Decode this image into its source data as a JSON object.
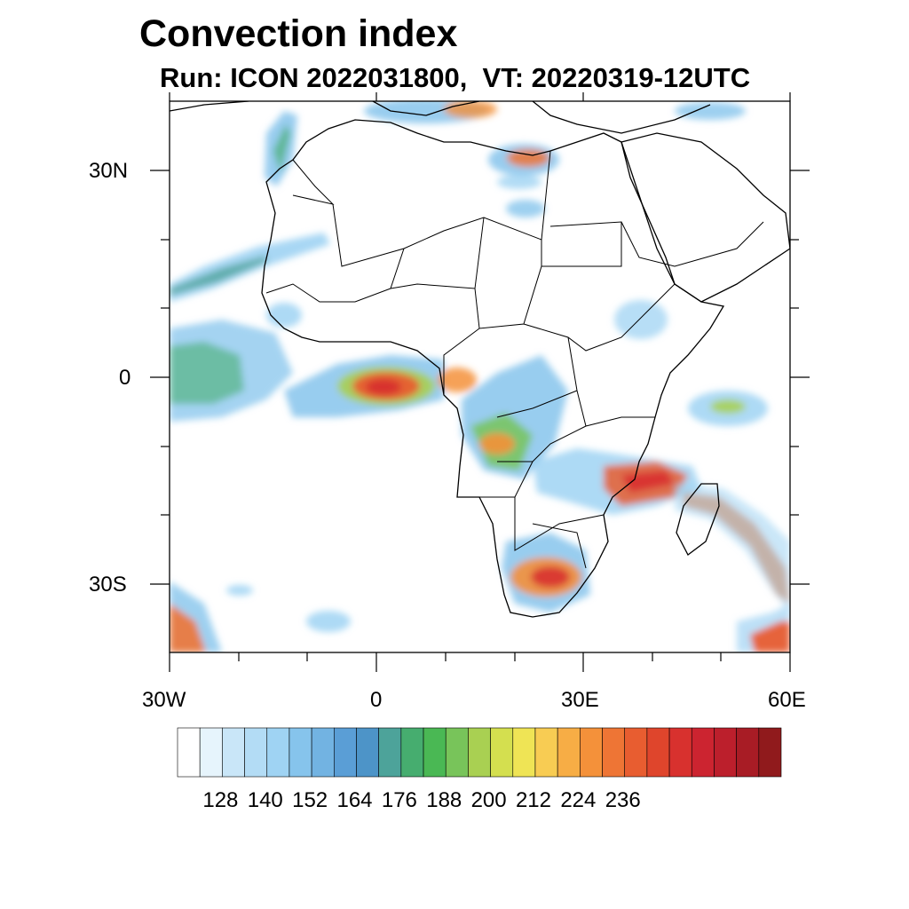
{
  "title": "Convection index",
  "subtitle": "Run: ICON 2022031800,  VT: 20220319-12UTC",
  "axes": {
    "lon_labels": [
      "30W",
      "0",
      "30E",
      "60E"
    ],
    "lat_labels": [
      "30N",
      "0",
      "30S"
    ],
    "lon_range": [
      -30,
      60
    ],
    "lat_range": [
      -40,
      40
    ]
  },
  "colorbar": {
    "levels": [
      128,
      140,
      152,
      164,
      176,
      188,
      200,
      212,
      224,
      236
    ],
    "colors": [
      "#ffffff",
      "#e6f4fc",
      "#c9e6f8",
      "#b3dcf5",
      "#9fd3f3",
      "#86c4ec",
      "#72b3e2",
      "#5a9ed6",
      "#4d94c8",
      "#4da39a",
      "#46ad6f",
      "#4ab854",
      "#78c45a",
      "#a9d052",
      "#d4df4f",
      "#efe455",
      "#f8cc53",
      "#f7ad45",
      "#f4913a",
      "#ee7535",
      "#e85d30",
      "#df452c",
      "#d8312e",
      "#cc2430",
      "#bc1f2c",
      "#a81c25",
      "#901a1c"
    ]
  },
  "legend_colors": {
    "low": "#9fd3f3",
    "mid": "#4ab854",
    "high": "#f4913a",
    "max": "#d8312e"
  }
}
